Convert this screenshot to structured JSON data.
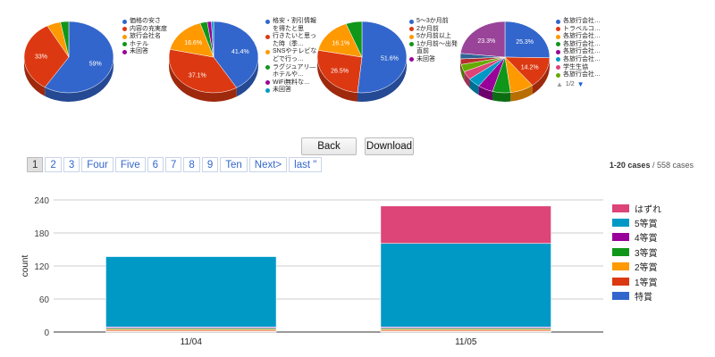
{
  "pies": [
    {
      "legend": [
        "価格の安さ",
        "内容の充実度",
        "旅行会社名",
        "ホテル",
        "未回答"
      ],
      "slices": [
        {
          "label": "59%",
          "value": 59,
          "color": "#3366cc"
        },
        {
          "label": "33%",
          "value": 33,
          "color": "#dc3912"
        },
        {
          "label": "",
          "value": 5,
          "color": "#ff9900"
        },
        {
          "label": "",
          "value": 3,
          "color": "#109618"
        },
        {
          "label": "",
          "value": 0,
          "color": "#990099"
        }
      ]
    },
    {
      "legend": [
        "格安・割引情報を得たと思",
        "行きたいと思った時（季…",
        "SNSやテレビなどで行っ…",
        "ラグジュアリ―ホテルや…",
        "WiFi無料な…",
        "未回答"
      ],
      "slices": [
        {
          "label": "41.4%",
          "value": 41.4,
          "color": "#3366cc"
        },
        {
          "label": "37.1%",
          "value": 37.1,
          "color": "#dc3912"
        },
        {
          "label": "16.6%",
          "value": 16.6,
          "color": "#ff9900"
        },
        {
          "label": "",
          "value": 2.6,
          "color": "#109618"
        },
        {
          "label": "",
          "value": 1.5,
          "color": "#990099"
        },
        {
          "label": "",
          "value": 0.8,
          "color": "#0099c6"
        }
      ]
    },
    {
      "legend": [
        "5～3か月前",
        "2か月前",
        "5か月前以上",
        "1か月前～出発直前",
        "未回答"
      ],
      "slices": [
        {
          "label": "51.6%",
          "value": 51.6,
          "color": "#3366cc"
        },
        {
          "label": "26.5%",
          "value": 26.5,
          "color": "#dc3912"
        },
        {
          "label": "16.1%",
          "value": 16.1,
          "color": "#ff9900"
        },
        {
          "label": "",
          "value": 5.8,
          "color": "#109618"
        },
        {
          "label": "",
          "value": 0,
          "color": "#990099"
        }
      ]
    },
    {
      "legend": [
        "各旅行会社…",
        "トラベルコ…",
        "各旅行会社…",
        "各旅行会社…",
        "各旅行会社…",
        "各旅行会社…",
        "学生生協",
        "各旅行会社…"
      ],
      "legend_page": "1/2",
      "slices": [
        {
          "label": "25.3%",
          "value": 25.3,
          "color": "#3366cc"
        },
        {
          "label": "14.2%",
          "value": 14.2,
          "color": "#dc3912"
        },
        {
          "label": "",
          "value": 8.5,
          "color": "#ff9900"
        },
        {
          "label": "",
          "value": 6.5,
          "color": "#109618"
        },
        {
          "label": "",
          "value": 5.5,
          "color": "#990099"
        },
        {
          "label": "",
          "value": 4.5,
          "color": "#0099c6"
        },
        {
          "label": "",
          "value": 3.8,
          "color": "#dd4477"
        },
        {
          "label": "",
          "value": 3.4,
          "color": "#66aa00"
        },
        {
          "label": "",
          "value": 2.5,
          "color": "#b82e2e"
        },
        {
          "label": "",
          "value": 2.5,
          "color": "#316395"
        },
        {
          "label": "23.3%",
          "value": 23.3,
          "color": "#994499"
        }
      ]
    }
  ],
  "buttons": {
    "back": "Back",
    "download": "Download"
  },
  "pagination": {
    "pages": [
      "1",
      "2",
      "3",
      "Four",
      "Five",
      "6",
      "7",
      "8",
      "9",
      "Ten",
      "Next>",
      "last \""
    ],
    "current": "1"
  },
  "cases": {
    "range": "1-20 cases",
    "separator": " / ",
    "total": "558 cases"
  },
  "chart_data": {
    "type": "bar",
    "stacked": true,
    "categories": [
      "11/04",
      "11/05"
    ],
    "ylabel": "count",
    "ylim": [
      0,
      240
    ],
    "yticks": [
      0,
      60,
      120,
      180,
      240
    ],
    "grid": true,
    "legend_position": "right",
    "series": [
      {
        "name": "特賞",
        "color": "#3366cc",
        "values": [
          1,
          1
        ]
      },
      {
        "name": "1等賞",
        "color": "#dc3912",
        "values": [
          2,
          2
        ]
      },
      {
        "name": "2等賞",
        "color": "#ff9900",
        "values": [
          2,
          2
        ]
      },
      {
        "name": "3等賞",
        "color": "#109618",
        "values": [
          2,
          2
        ]
      },
      {
        "name": "4等賞",
        "color": "#990099",
        "values": [
          2,
          2
        ]
      },
      {
        "name": "5等賞",
        "color": "#0099c6",
        "values": [
          128,
          152
        ]
      },
      {
        "name": "はずれ",
        "color": "#dd4477",
        "values": [
          0,
          68
        ]
      }
    ]
  }
}
